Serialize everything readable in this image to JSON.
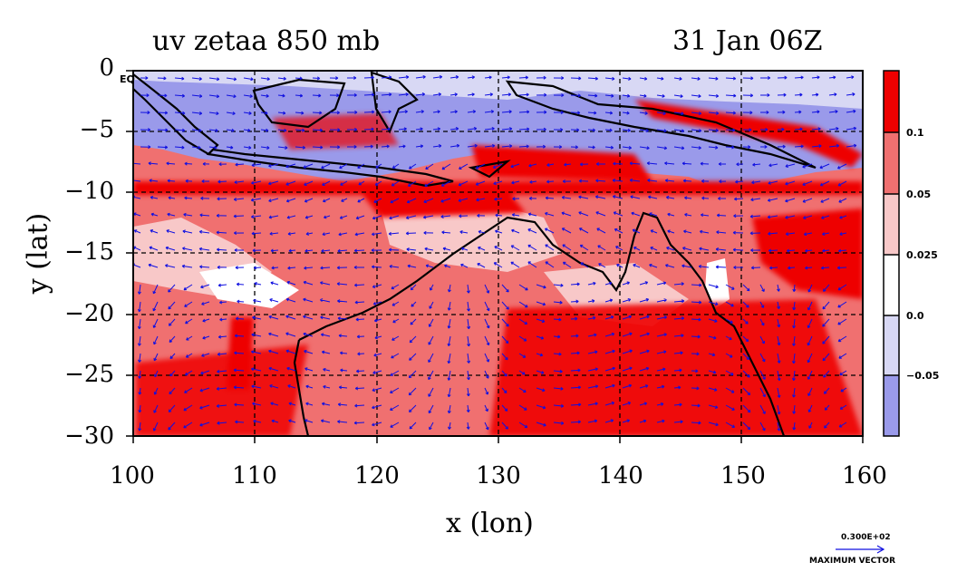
{
  "title": {
    "left": "uv zetaa 850 mb",
    "right": "31 Jan 06Z"
  },
  "axes": {
    "x_title": "x (lon)",
    "y_title": "y (lat)",
    "x_ticks": [
      "100",
      "110",
      "120",
      "130",
      "140",
      "150",
      "160"
    ],
    "y_ticks": [
      "0",
      "−5",
      "−10",
      "−15",
      "−20",
      "−25",
      "−30"
    ],
    "eq_label": "EQ"
  },
  "colorbar": {
    "labels": [
      "0.1",
      "0.05",
      "0.025",
      "0.0",
      "−0.05"
    ],
    "colors": [
      "#ee0000",
      "#f07070",
      "#f8c8c8",
      "#ffffff",
      "#d8d8f4",
      "#9a9aea"
    ]
  },
  "vector_key": {
    "value": "0.300E+02",
    "label": "MAXIMUM VECTOR"
  },
  "map_colors": {
    "strong_pos": "#ee0000",
    "pos": "#f07070",
    "light_pos": "#f8c8c8",
    "light_neg": "#d8d8f4",
    "neg": "#9a9aea",
    "vectors": "#1010e0",
    "coast": "#000000"
  },
  "chart_data": {
    "type": "heatmap",
    "title": "uv zetaa 850 mb",
    "date": "31 Jan 06Z",
    "xlabel": "x (lon)",
    "ylabel": "y (lat)",
    "xlim": [
      100,
      160
    ],
    "ylim": [
      -30,
      0
    ],
    "x_ticks": [
      100,
      110,
      120,
      130,
      140,
      150,
      160
    ],
    "y_ticks": [
      0,
      -5,
      -10,
      -15,
      -20,
      -25,
      -30
    ],
    "grid": true,
    "contour_levels": [
      -0.05,
      0.0,
      0.025,
      0.05,
      0.1
    ],
    "legend": "right colorbar",
    "vector_scale": "0.300E+02"
  }
}
